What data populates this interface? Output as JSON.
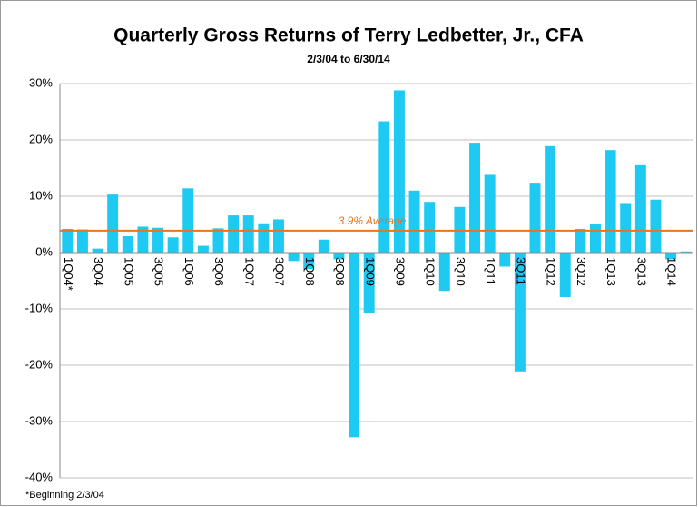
{
  "chart_data": {
    "type": "bar",
    "title": "Quarterly Gross Returns of Terry Ledbetter, Jr., CFA",
    "subtitle": "2/3/04 to 6/30/14",
    "footnote": "*Beginning 2/3/04",
    "categories": [
      "1Q04*",
      null,
      "3Q04",
      null,
      "1Q05",
      null,
      "3Q05",
      null,
      "1Q06",
      null,
      "3Q06",
      null,
      "1Q07",
      null,
      "3Q07",
      null,
      "1Q08",
      null,
      "3Q08",
      null,
      "1Q09",
      null,
      "3Q09",
      null,
      "1Q10",
      null,
      "3Q10",
      null,
      "1Q11",
      null,
      "3Q11",
      null,
      "1Q12",
      null,
      "3Q12",
      null,
      "1Q13",
      null,
      "3Q13",
      null,
      "1Q14",
      null
    ],
    "values": [
      4.2,
      4.1,
      0.7,
      10.3,
      2.9,
      4.6,
      4.4,
      2.7,
      11.4,
      1.2,
      4.3,
      6.6,
      6.6,
      5.2,
      5.9,
      -1.5,
      -2.9,
      2.3,
      -1.2,
      -32.8,
      -10.8,
      23.3,
      28.8,
      11.0,
      9.0,
      -6.8,
      8.1,
      19.5,
      13.8,
      -2.5,
      -21.1,
      12.4,
      18.9,
      -7.9,
      4.2,
      5.0,
      18.2,
      8.8,
      15.5,
      9.4,
      -1.2,
      0.2
    ],
    "color": "#1fcaf2",
    "average": 3.9,
    "average_label": "3.9% Average",
    "average_color": "#e5751f",
    "ylim": [
      -40,
      30
    ],
    "yticks": [
      {
        "value": -40,
        "label": "-40%"
      },
      {
        "value": -30,
        "label": "-30%"
      },
      {
        "value": -20,
        "label": "-20%"
      },
      {
        "value": -10,
        "label": "-10%"
      },
      {
        "value": 0,
        "label": "0%"
      },
      {
        "value": 10,
        "label": "10%"
      },
      {
        "value": 20,
        "label": "20%"
      },
      {
        "value": 30,
        "label": "30%"
      }
    ],
    "grid": true
  }
}
